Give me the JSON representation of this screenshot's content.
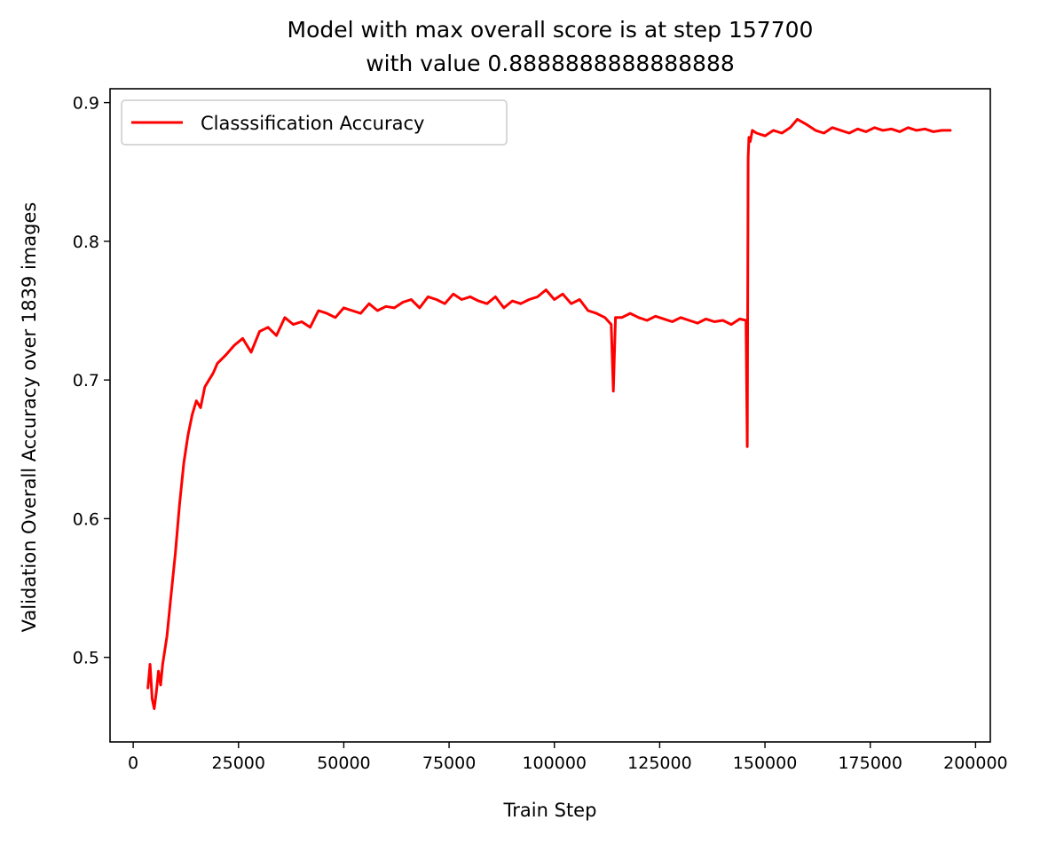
{
  "chart_data": {
    "type": "line",
    "title": [
      "Model with max overall score is at step 157700",
      "with value 0.8888888888888888"
    ],
    "xlabel": "Train Step",
    "ylabel": "Validation Overall Accuracy over 1839 images",
    "xlim": [
      -5500,
      203500
    ],
    "ylim": [
      0.439,
      0.91
    ],
    "xticks": [
      0,
      25000,
      50000,
      75000,
      100000,
      125000,
      150000,
      175000,
      200000
    ],
    "xtick_labels": [
      "0",
      "25000",
      "50000",
      "75000",
      "100000",
      "125000",
      "150000",
      "175000",
      "200000"
    ],
    "yticks": [
      0.5,
      0.6,
      0.7,
      0.8,
      0.9
    ],
    "ytick_labels": [
      "0.5",
      "0.6",
      "0.7",
      "0.8",
      "0.9"
    ],
    "grid": false,
    "legend_position": "top-left",
    "series": [
      {
        "name": "Classsification Accuracy",
        "color": "#ff0000",
        "x": [
          3500,
          4000,
          4500,
          5000,
          5500,
          6000,
          6500,
          7000,
          8000,
          9000,
          10000,
          11000,
          12000,
          13000,
          14000,
          15000,
          16000,
          17000,
          18000,
          19000,
          20000,
          22000,
          24000,
          26000,
          28000,
          30000,
          32000,
          34000,
          36000,
          38000,
          40000,
          42000,
          44000,
          46000,
          48000,
          50000,
          52000,
          54000,
          56000,
          58000,
          60000,
          62000,
          64000,
          66000,
          68000,
          70000,
          72000,
          74000,
          76000,
          78000,
          80000,
          82000,
          84000,
          86000,
          88000,
          90000,
          92000,
          94000,
          96000,
          98000,
          100000,
          102000,
          104000,
          106000,
          108000,
          110000,
          112000,
          113500,
          114000,
          114500,
          116000,
          118000,
          120000,
          122000,
          124000,
          126000,
          128000,
          130000,
          132000,
          134000,
          136000,
          138000,
          140000,
          142000,
          144000,
          145500,
          145800,
          146000,
          146200,
          146500,
          147000,
          148000,
          150000,
          152000,
          154000,
          156000,
          157700,
          160000,
          162000,
          164000,
          166000,
          168000,
          170000,
          172000,
          174000,
          176000,
          178000,
          180000,
          182000,
          184000,
          186000,
          188000,
          190000,
          192000,
          194000
        ],
        "y": [
          0.478,
          0.495,
          0.47,
          0.463,
          0.475,
          0.49,
          0.48,
          0.495,
          0.515,
          0.545,
          0.575,
          0.61,
          0.64,
          0.66,
          0.675,
          0.685,
          0.68,
          0.695,
          0.7,
          0.705,
          0.712,
          0.718,
          0.725,
          0.73,
          0.72,
          0.735,
          0.738,
          0.732,
          0.745,
          0.74,
          0.742,
          0.738,
          0.75,
          0.748,
          0.745,
          0.752,
          0.75,
          0.748,
          0.755,
          0.75,
          0.753,
          0.752,
          0.756,
          0.758,
          0.752,
          0.76,
          0.758,
          0.755,
          0.762,
          0.758,
          0.76,
          0.757,
          0.755,
          0.76,
          0.752,
          0.757,
          0.755,
          0.758,
          0.76,
          0.765,
          0.758,
          0.762,
          0.755,
          0.758,
          0.75,
          0.748,
          0.745,
          0.74,
          0.692,
          0.745,
          0.745,
          0.748,
          0.745,
          0.743,
          0.746,
          0.744,
          0.742,
          0.745,
          0.743,
          0.741,
          0.744,
          0.742,
          0.743,
          0.74,
          0.744,
          0.743,
          0.652,
          0.86,
          0.875,
          0.872,
          0.88,
          0.878,
          0.876,
          0.88,
          0.878,
          0.882,
          0.888,
          0.884,
          0.88,
          0.878,
          0.882,
          0.88,
          0.878,
          0.881,
          0.879,
          0.882,
          0.88,
          0.881,
          0.879,
          0.882,
          0.88,
          0.881,
          0.879,
          0.88,
          0.88
        ]
      }
    ]
  }
}
